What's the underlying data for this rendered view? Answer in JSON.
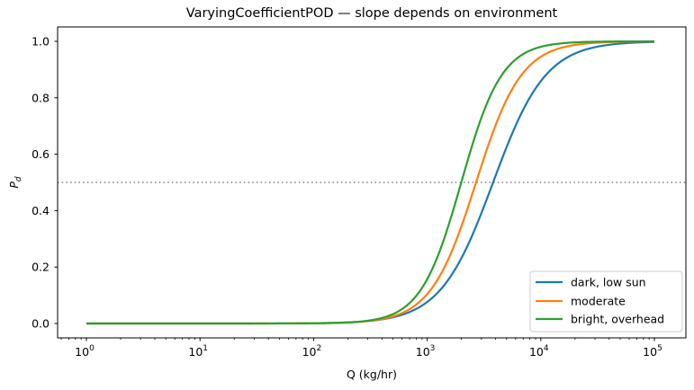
{
  "chart_data": {
    "type": "line",
    "title": "VaryingCoefficientPOD — slope depends on environment",
    "xlabel": "Q  (kg/hr)",
    "ylabel": "P_d",
    "xscale": "log",
    "xlim": [
      0.6,
      160000
    ],
    "ylim": [
      -0.05,
      1.05
    ],
    "x_ticks": [
      1,
      10,
      100,
      1000,
      10000,
      100000
    ],
    "x_tick_labels": [
      "10^0",
      "10^1",
      "10^2",
      "10^3",
      "10^4",
      "10^5"
    ],
    "y_ticks": [
      0.0,
      0.2,
      0.4,
      0.6,
      0.8,
      1.0
    ],
    "y_tick_labels": [
      "0.0",
      "0.2",
      "0.4",
      "0.6",
      "0.8",
      "1.0"
    ],
    "grid": false,
    "legend_position": "lower right",
    "reference_line": {
      "y": 0.5,
      "style": "dotted",
      "color": "#808080"
    },
    "x": [
      1,
      10,
      100,
      300,
      500,
      1000,
      2000,
      3000,
      5000,
      10000,
      30000,
      100000
    ],
    "series": [
      {
        "name": "dark, low sun",
        "color": "#1f77b4",
        "midpoint_log10Q": 3.58,
        "slope_per_decade": 4.3,
        "values": [
          0.0,
          0.0,
          0.003,
          0.017,
          0.043,
          0.154,
          0.425,
          0.627,
          0.809,
          0.946,
          0.996,
          1.0
        ]
      },
      {
        "name": "moderate",
        "color": "#ff7f0e",
        "midpoint_log10Q": 3.43,
        "slope_per_decade": 5.0,
        "values": [
          0.0,
          0.0,
          0.002,
          0.017,
          0.047,
          0.218,
          0.629,
          0.815,
          0.932,
          0.983,
          0.999,
          1.0
        ]
      },
      {
        "name": "bright, overhead",
        "color": "#2ca02c",
        "midpoint_log10Q": 3.3,
        "slope_per_decade": 5.6,
        "values": [
          0.0,
          0.0,
          0.001,
          0.016,
          0.051,
          0.29,
          0.803,
          0.915,
          0.977,
          0.996,
          1.0,
          1.0
        ]
      }
    ]
  },
  "figure": {
    "title": "VaryingCoefficientPOD — slope depends on environment",
    "xlabel": "Q  (kg/hr)",
    "ylabel_base": "P",
    "ylabel_sub": "d",
    "legend": [
      {
        "label": "dark, low sun",
        "color": "#1f77b4"
      },
      {
        "label": "moderate",
        "color": "#ff7f0e"
      },
      {
        "label": "bright, overhead",
        "color": "#2ca02c"
      }
    ]
  }
}
